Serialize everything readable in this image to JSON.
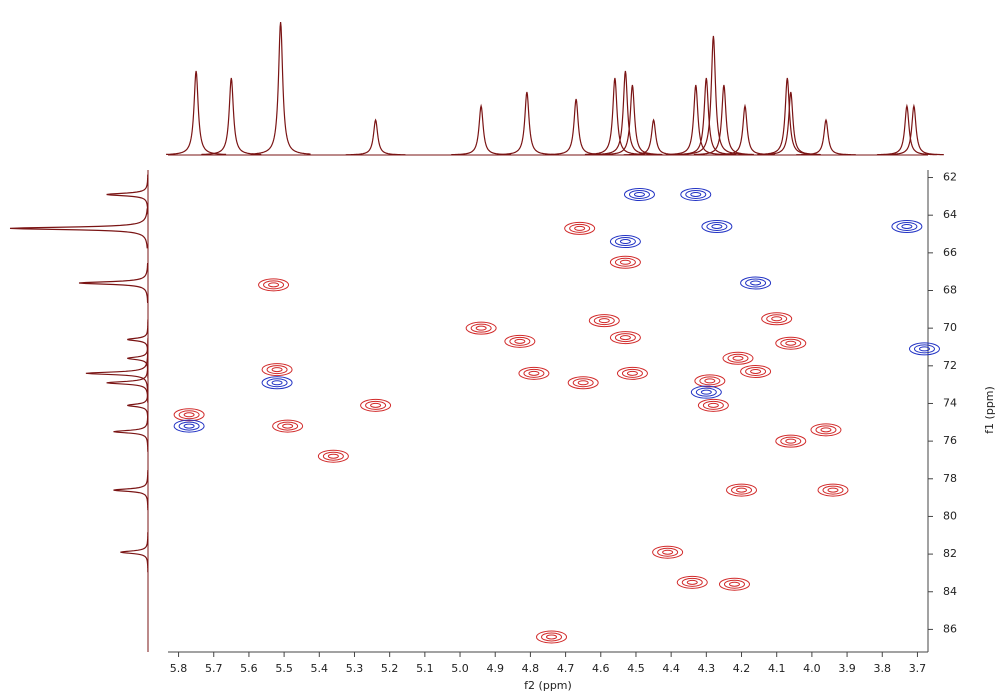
{
  "chart_data": {
    "type": "contour2d",
    "x_label": "f2 (ppm)",
    "y_label": "f1 (ppm)",
    "xlim": [
      5.83,
      3.67
    ],
    "ylim": [
      61.6,
      87.2
    ],
    "xticks": [
      5.8,
      5.7,
      5.6,
      5.5,
      5.4,
      5.3,
      5.2,
      5.1,
      {
        "value": 5,
        "label": "5.0"
      },
      4.9,
      4.8,
      4.7,
      4.6,
      4.5,
      4.4,
      4.3,
      4.2,
      4.1,
      {
        "value": 4,
        "label": "4.0"
      },
      3.9,
      3.8,
      3.7
    ],
    "yticks": [
      62,
      64,
      66,
      68,
      70,
      72,
      74,
      76,
      78,
      80,
      82,
      84,
      86
    ],
    "series": [
      {
        "name": "positive",
        "color": "#d12a2a",
        "x": [
          5.53,
          5.52,
          5.77,
          5.24,
          5.36,
          5.49,
          4.94,
          4.83,
          4.79,
          4.65,
          4.51,
          4.53,
          4.59,
          4.66,
          4.53,
          4.29,
          4.28,
          4.21,
          4.16,
          4.1,
          4.06,
          3.96,
          4.06,
          3.94,
          4.2,
          4.41,
          4.34,
          4.22,
          4.74
        ],
        "y": [
          67.7,
          72.2,
          74.6,
          74.1,
          76.8,
          75.2,
          70.0,
          70.7,
          72.4,
          72.9,
          72.4,
          70.5,
          69.6,
          64.7,
          66.5,
          72.8,
          74.1,
          71.6,
          72.3,
          69.5,
          70.8,
          75.4,
          76.0,
          78.6,
          78.6,
          81.9,
          83.5,
          83.6,
          86.4
        ]
      },
      {
        "name": "negative",
        "color": "#2233c4",
        "x": [
          4.49,
          4.33,
          4.27,
          3.73,
          4.16,
          3.68,
          4.53,
          5.52,
          5.77,
          4.3
        ],
        "y": [
          62.9,
          62.9,
          64.6,
          64.6,
          67.6,
          71.1,
          65.4,
          72.9,
          75.2,
          73.4
        ]
      }
    ],
    "trace_color": "#7a1414",
    "top_projection": {
      "x": [
        5.75,
        5.65,
        5.51,
        5.24,
        4.94,
        4.81,
        4.67,
        4.56,
        4.53,
        4.51,
        4.45,
        4.33,
        4.3,
        4.28,
        4.25,
        4.19,
        4.07,
        4.06,
        3.96,
        3.73,
        3.71
      ],
      "intensity": [
        60,
        55,
        95,
        25,
        35,
        45,
        40,
        55,
        60,
        50,
        25,
        50,
        55,
        85,
        50,
        35,
        55,
        45,
        25,
        35,
        35
      ]
    },
    "left_projection": {
      "y": [
        62.9,
        64.7,
        67.6,
        70.6,
        71.6,
        72.4,
        72.9,
        74.1,
        75.5,
        78.6,
        81.9
      ],
      "intensity": [
        30,
        100,
        50,
        15,
        15,
        45,
        30,
        15,
        25,
        25,
        20
      ]
    }
  }
}
